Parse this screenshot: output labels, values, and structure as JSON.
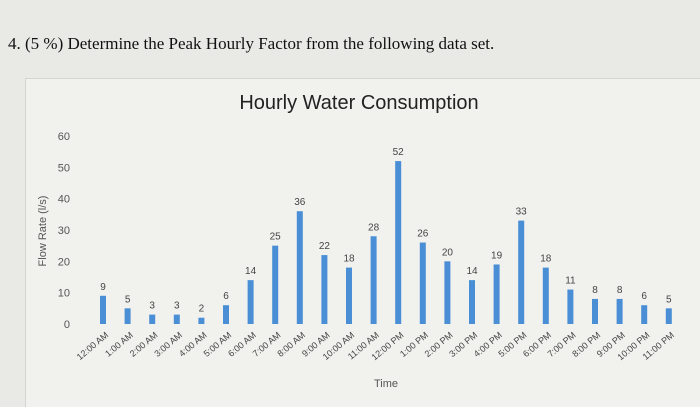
{
  "question": "4. (5 %) Determine the Peak Hourly Factor from the following data set.",
  "chart_data": {
    "type": "bar",
    "title": "Hourly Water Consumption",
    "xlabel": "Time",
    "ylabel": "Flow Rate (l/s)",
    "ylim": [
      0,
      60
    ],
    "yticks": [
      0,
      10,
      20,
      30,
      40,
      50,
      60
    ],
    "grid": false,
    "bar_color": "#4a8fd6",
    "categories": [
      "12:00 AM",
      "1:00 AM",
      "2:00 AM",
      "3:00 AM",
      "4:00 AM",
      "5:00 AM",
      "6:00 AM",
      "7:00 AM",
      "8:00 AM",
      "9:00 AM",
      "10:00 AM",
      "11:00 AM",
      "12:00 PM",
      "1:00 PM",
      "2:00 PM",
      "3:00 PM",
      "4:00 PM",
      "5:00 PM",
      "6:00 PM",
      "7:00 PM",
      "8:00 PM",
      "9:00 PM",
      "10:00 PM",
      "11:00 PM"
    ],
    "values": [
      9,
      5,
      3,
      3,
      2,
      6,
      14,
      25,
      36,
      22,
      18,
      28,
      52,
      26,
      20,
      14,
      19,
      33,
      18,
      11,
      8,
      8,
      6,
      5
    ]
  }
}
